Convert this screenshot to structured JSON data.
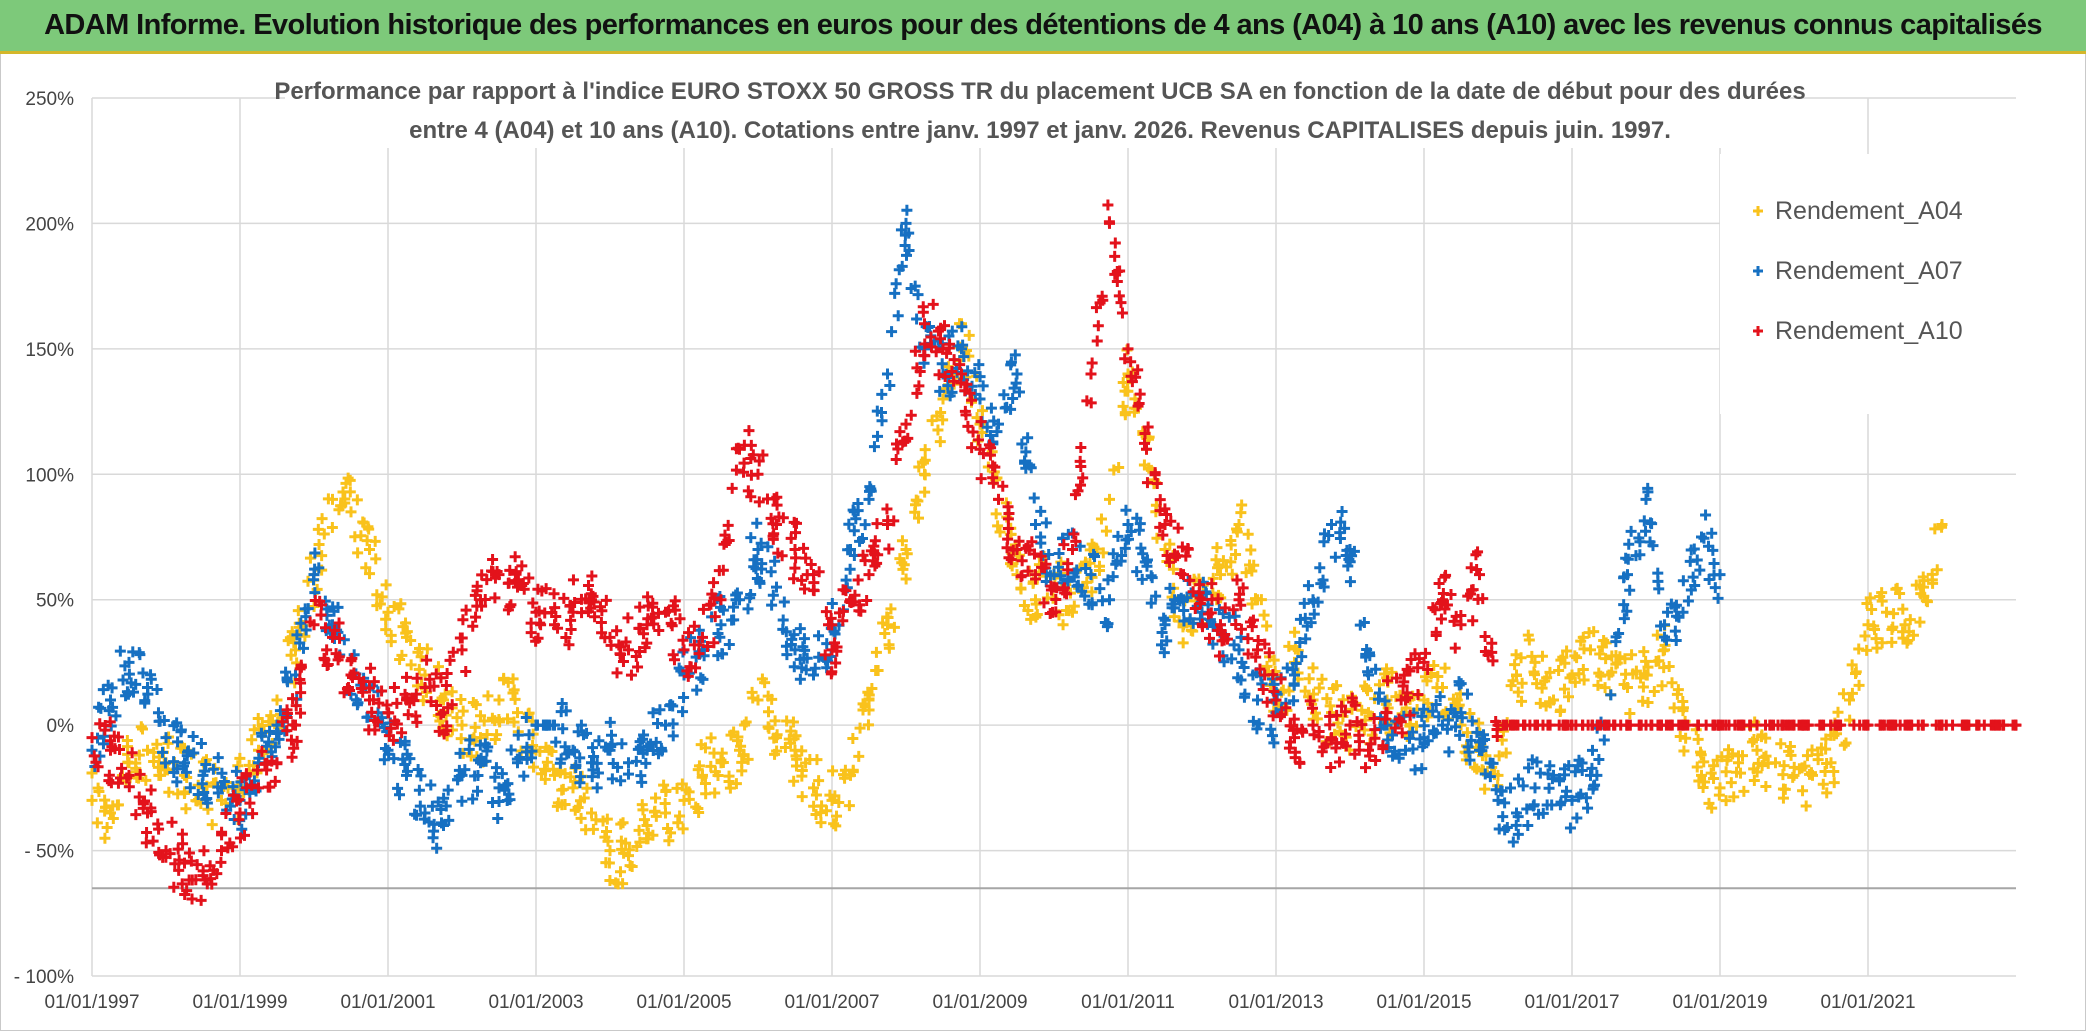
{
  "banner": {
    "title": "ADAM Informe. Evolution historique des performances en euros pour des détentions de 4 ans (A04) à 10 ans (A10) avec les revenus connus capitalisés"
  },
  "colors": {
    "banner_bg": "#7dc97a",
    "banner_border": "#d4b72a",
    "A04": "#f9c21c",
    "A07": "#1670c2",
    "A10": "#e3121b",
    "grid": "#d9d9d9"
  },
  "chart_data": {
    "type": "scatter",
    "title_lines": [
      "Performance par rapport à l'indice EURO STOXX 50 GROSS TR  du placement UCB SA en fonction de la date de début pour des durées",
      "entre 4 (A04) et 10 ans (A10). Cotations entre janv. 1997 et janv. 2026. Revenus CAPITALISES depuis juin. 1997."
    ],
    "xlabel": "",
    "ylabel": "",
    "xlim": [
      1997.0,
      2023.0
    ],
    "ylim": [
      -100,
      250
    ],
    "x_tick_labels": [
      "01/01/1997",
      "01/01/1999",
      "01/01/2001",
      "01/01/2003",
      "01/01/2005",
      "01/01/2007",
      "01/01/2009",
      "01/01/2011",
      "01/01/2013",
      "01/01/2015",
      "01/01/2017",
      "01/01/2019",
      "01/01/2021"
    ],
    "x_tick_values": [
      1997,
      1999,
      2001,
      2003,
      2005,
      2007,
      2009,
      2011,
      2013,
      2015,
      2017,
      2019,
      2021
    ],
    "y_tick_labels": [
      "250%",
      "200%",
      "150%",
      "100%",
      "50%",
      "0%",
      "- 50%",
      "- 100%"
    ],
    "y_tick_values": [
      250,
      200,
      150,
      100,
      50,
      0,
      -50,
      -100
    ],
    "legend_position": "right",
    "series": [
      {
        "name": "Rendement_A04",
        "marker": "+",
        "color_key": "A04",
        "x": [
          1997.0,
          1997.25,
          1997.5,
          1997.75,
          1998.0,
          1998.25,
          1998.5,
          1998.75,
          1999.0,
          1999.25,
          1999.5,
          1999.75,
          2000.0,
          2000.25,
          2000.5,
          2000.75,
          2001.0,
          2001.25,
          2001.5,
          2001.75,
          2002.0,
          2002.25,
          2002.5,
          2002.75,
          2003.0,
          2003.25,
          2003.5,
          2003.75,
          2004.0,
          2004.25,
          2004.5,
          2004.75,
          2005.0,
          2005.25,
          2005.5,
          2005.75,
          2006.0,
          2006.25,
          2006.5,
          2006.75,
          2007.0,
          2007.25,
          2007.5,
          2007.75,
          2008.0,
          2008.25,
          2008.5,
          2008.75,
          2009.0,
          2009.25,
          2009.5,
          2009.75,
          2010.0,
          2010.25,
          2010.5,
          2010.75,
          2011.0,
          2011.25,
          2011.5,
          2011.75,
          2012.0,
          2012.25,
          2012.5,
          2012.75,
          2013.0,
          2013.25,
          2013.5,
          2013.75,
          2014.0,
          2014.25,
          2014.5,
          2014.75,
          2015.0,
          2015.25,
          2015.5,
          2015.75,
          2016.0,
          2016.25,
          2016.5,
          2016.75,
          2017.0,
          2017.25,
          2017.5,
          2017.75,
          2018.0,
          2018.25,
          2018.5,
          2018.75,
          2019.0,
          2019.25,
          2019.5,
          2019.75,
          2020.0,
          2020.25,
          2020.5,
          2020.75,
          2021.0,
          2021.25,
          2021.5,
          2021.75,
          2022.0
        ],
        "y": [
          -30,
          -35,
          -15,
          -10,
          -15,
          -20,
          -25,
          -30,
          -25,
          -10,
          10,
          30,
          60,
          90,
          85,
          70,
          45,
          35,
          20,
          10,
          0,
          -5,
          10,
          5,
          -10,
          -20,
          -25,
          -35,
          -50,
          -52,
          -40,
          -35,
          -30,
          -20,
          -15,
          -10,
          10,
          -5,
          -10,
          -25,
          -30,
          -20,
          10,
          40,
          70,
          100,
          130,
          160,
          120,
          90,
          60,
          50,
          60,
          45,
          60,
          90,
          140,
          110,
          70,
          40,
          50,
          60,
          80,
          50,
          10,
          25,
          10,
          5,
          0,
          5,
          10,
          5,
          10,
          15,
          0,
          -10,
          -20,
          20,
          25,
          10,
          20,
          30,
          20,
          15,
          20,
          30,
          0,
          -20,
          -25,
          -15,
          -10,
          -15,
          -20,
          -20,
          -15,
          10,
          40,
          45,
          40,
          55,
          80
        ]
      },
      {
        "name": "Rendement_A07",
        "marker": "+",
        "color_key": "A07",
        "x": [
          1997.0,
          1997.25,
          1997.5,
          1997.75,
          1998.0,
          1998.25,
          1998.5,
          1998.75,
          1999.0,
          1999.25,
          1999.5,
          1999.75,
          2000.0,
          2000.25,
          2000.5,
          2000.75,
          2001.0,
          2001.25,
          2001.5,
          2001.75,
          2002.0,
          2002.25,
          2002.5,
          2002.75,
          2003.0,
          2003.25,
          2003.5,
          2003.75,
          2004.0,
          2004.25,
          2004.5,
          2004.75,
          2005.0,
          2005.25,
          2005.5,
          2005.75,
          2006.0,
          2006.25,
          2006.5,
          2006.75,
          2007.0,
          2007.25,
          2007.5,
          2007.75,
          2008.0,
          2008.25,
          2008.5,
          2008.75,
          2009.0,
          2009.25,
          2009.5,
          2009.75,
          2010.0,
          2010.25,
          2010.5,
          2010.75,
          2011.0,
          2011.25,
          2011.5,
          2011.75,
          2012.0,
          2012.25,
          2012.5,
          2012.75,
          2013.0,
          2013.25,
          2013.5,
          2013.75,
          2014.0,
          2014.25,
          2014.5,
          2014.75,
          2015.0,
          2015.25,
          2015.5,
          2015.75,
          2016.0,
          2016.25,
          2016.5,
          2016.75,
          2017.0,
          2017.25,
          2017.5,
          2017.75,
          2018.0,
          2018.25,
          2018.5,
          2018.75,
          2019.0
        ],
        "y": [
          -10,
          10,
          25,
          15,
          -5,
          -15,
          -20,
          -25,
          -30,
          -15,
          0,
          20,
          60,
          40,
          20,
          10,
          -10,
          -20,
          -35,
          -40,
          -20,
          -15,
          -25,
          -15,
          0,
          0,
          -10,
          -15,
          -10,
          -15,
          -10,
          0,
          20,
          30,
          40,
          50,
          70,
          55,
          30,
          20,
          40,
          70,
          90,
          140,
          200,
          150,
          140,
          150,
          130,
          120,
          140,
          80,
          60,
          70,
          60,
          50,
          80,
          65,
          40,
          50,
          45,
          40,
          30,
          10,
          5,
          20,
          50,
          80,
          70,
          20,
          0,
          -10,
          -5,
          0,
          5,
          -10,
          -30,
          -35,
          -25,
          -20,
          -30,
          -20,
          0,
          60,
          90,
          40,
          45,
          75,
          60
        ]
      },
      {
        "name": "Rendement_A10",
        "marker": "+",
        "color_key": "A10",
        "x": [
          1997.0,
          1997.25,
          1997.5,
          1997.75,
          1998.0,
          1998.25,
          1998.5,
          1998.75,
          1999.0,
          1999.25,
          1999.5,
          1999.75,
          2000.0,
          2000.25,
          2000.5,
          2000.75,
          2001.0,
          2001.25,
          2001.5,
          2001.75,
          2002.0,
          2002.25,
          2002.5,
          2002.75,
          2003.0,
          2003.25,
          2003.5,
          2003.75,
          2004.0,
          2004.25,
          2004.5,
          2004.75,
          2005.0,
          2005.25,
          2005.5,
          2005.75,
          2006.0,
          2006.25,
          2006.5,
          2006.75,
          2007.0,
          2007.25,
          2007.5,
          2007.75,
          2008.0,
          2008.25,
          2008.5,
          2008.75,
          2009.0,
          2009.25,
          2009.5,
          2009.75,
          2010.0,
          2010.25,
          2010.5,
          2010.75,
          2011.0,
          2011.25,
          2011.5,
          2011.75,
          2012.0,
          2012.25,
          2012.5,
          2012.75,
          2013.0,
          2013.25,
          2013.5,
          2013.75,
          2014.0,
          2014.25,
          2014.5,
          2014.75,
          2015.0,
          2015.25,
          2015.5,
          2015.75,
          2016.0,
          2016.5,
          2017.0,
          2017.5,
          2018.0,
          2018.5,
          2019.0,
          2019.5,
          2020.0,
          2020.5,
          2021.0,
          2021.5,
          2022.0,
          2022.5,
          2023.0
        ],
        "y": [
          -5,
          -10,
          -20,
          -35,
          -50,
          -55,
          -60,
          -50,
          -35,
          -25,
          -15,
          0,
          40,
          35,
          20,
          10,
          5,
          10,
          15,
          5,
          30,
          50,
          60,
          55,
          45,
          40,
          45,
          50,
          35,
          30,
          40,
          45,
          30,
          35,
          50,
          110,
          100,
          80,
          70,
          60,
          30,
          50,
          60,
          80,
          120,
          160,
          150,
          140,
          110,
          90,
          70,
          60,
          55,
          70,
          140,
          200,
          150,
          110,
          80,
          60,
          50,
          40,
          50,
          30,
          10,
          -5,
          0,
          -5,
          0,
          -10,
          5,
          10,
          25,
          50,
          40,
          60,
          0,
          0,
          0,
          0,
          0,
          0,
          0,
          0,
          0,
          0,
          0,
          0,
          0,
          0,
          0
        ]
      }
    ]
  }
}
